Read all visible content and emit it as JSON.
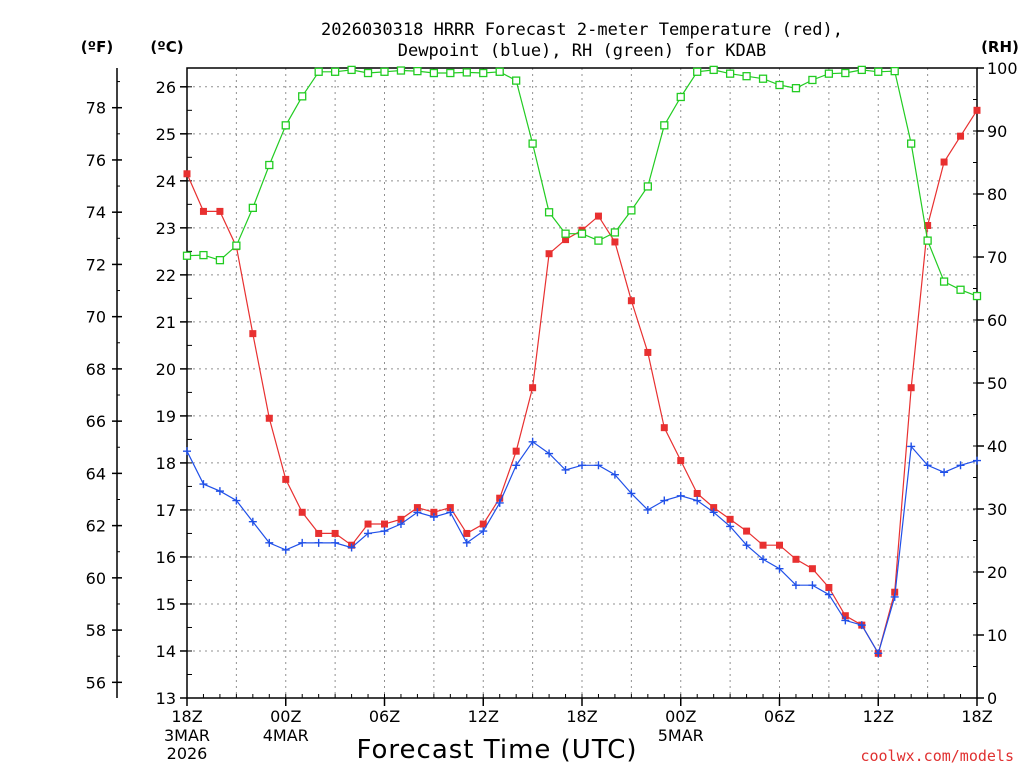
{
  "chart_data": {
    "type": "line",
    "title": "2026030318 HRRR Forecast 2-meter Temperature (red),",
    "subtitle": "Dewpoint (blue), RH (green) for KDAB",
    "xlabel": "Forecast Time (UTC)",
    "credit": "coolwx.com/models",
    "units": {
      "fahrenheit": "(ºF)",
      "celsius": "(ºC)",
      "rh": "(RH)"
    },
    "celsius_axis": {
      "ylim": [
        13,
        26.4
      ],
      "ticks": [
        "13",
        "14",
        "15",
        "16",
        "17",
        "18",
        "19",
        "20",
        "21",
        "22",
        "23",
        "24",
        "25",
        "26"
      ]
    },
    "fahrenheit_axis": {
      "ticks": [
        "56",
        "58",
        "60",
        "62",
        "64",
        "66",
        "68",
        "70",
        "72",
        "74",
        "76",
        "78"
      ]
    },
    "rh_axis": {
      "ylim": [
        0,
        100
      ],
      "ticks": [
        "0",
        "10",
        "20",
        "30",
        "40",
        "50",
        "60",
        "70",
        "80",
        "90",
        "100"
      ]
    },
    "x_ticks": [
      {
        "hour": 0,
        "label": "18Z",
        "line2": "3MAR",
        "line3": "2026"
      },
      {
        "hour": 6,
        "label": "00Z",
        "line2": "4MAR",
        "line3": ""
      },
      {
        "hour": 12,
        "label": "06Z",
        "line2": "",
        "line3": ""
      },
      {
        "hour": 18,
        "label": "12Z",
        "line2": "",
        "line3": ""
      },
      {
        "hour": 24,
        "label": "18Z",
        "line2": "",
        "line3": ""
      },
      {
        "hour": 30,
        "label": "00Z",
        "line2": "5MAR",
        "line3": ""
      },
      {
        "hour": 36,
        "label": "06Z",
        "line2": "",
        "line3": ""
      },
      {
        "hour": 42,
        "label": "12Z",
        "line2": "",
        "line3": ""
      },
      {
        "hour": 48,
        "label": "18Z",
        "line2": "",
        "line3": ""
      }
    ],
    "x_range_hours": [
      0,
      48
    ],
    "series": [
      {
        "name": "Temperature",
        "unit": "C",
        "color": "#e83030",
        "marker": "filled-square",
        "values": [
          24.15,
          23.35,
          23.35,
          22.6,
          20.75,
          18.95,
          17.65,
          16.95,
          16.5,
          16.5,
          16.25,
          16.7,
          16.7,
          16.8,
          17.05,
          16.95,
          17.05,
          16.5,
          16.7,
          17.25,
          18.25,
          19.6,
          22.45,
          22.75,
          22.95,
          23.25,
          22.7,
          21.45,
          20.35,
          18.75,
          18.05,
          17.35,
          17.05,
          16.8,
          16.55,
          16.25,
          16.25,
          15.95,
          15.75,
          15.35,
          14.75,
          14.55,
          13.95,
          15.25,
          19.6,
          23.05,
          24.4,
          24.95,
          25.5
        ]
      },
      {
        "name": "Dewpoint",
        "unit": "C",
        "color": "#2050e8",
        "marker": "plus",
        "values": [
          18.25,
          17.55,
          17.4,
          17.2,
          16.75,
          16.3,
          16.15,
          16.3,
          16.3,
          16.3,
          16.2,
          16.5,
          16.55,
          16.7,
          16.95,
          16.85,
          16.95,
          16.3,
          16.55,
          17.15,
          17.95,
          18.45,
          18.2,
          17.85,
          17.95,
          17.95,
          17.75,
          17.35,
          17.0,
          17.2,
          17.3,
          17.2,
          16.95,
          16.65,
          16.25,
          15.95,
          15.75,
          15.4,
          15.4,
          15.2,
          14.65,
          14.55,
          13.95,
          15.15,
          18.35,
          17.95,
          17.8,
          17.95,
          18.05
        ]
      },
      {
        "name": "RH",
        "unit": "%",
        "color": "#22cc22",
        "marker": "open-square",
        "values": [
          70.2,
          70.3,
          69.5,
          71.8,
          77.8,
          84.6,
          90.9,
          95.5,
          99.4,
          99.4,
          99.7,
          99.2,
          99.4,
          99.6,
          99.5,
          99.2,
          99.2,
          99.3,
          99.2,
          99.4,
          98.0,
          88.0,
          77.1,
          73.7,
          73.7,
          72.6,
          73.9,
          77.4,
          81.2,
          90.9,
          95.4,
          99.4,
          99.7,
          99.1,
          98.7,
          98.3,
          97.3,
          96.8,
          98.1,
          99.1,
          99.2,
          99.7,
          99.4,
          99.5,
          88.0,
          72.6,
          66.1,
          64.8,
          63.8
        ]
      }
    ]
  }
}
